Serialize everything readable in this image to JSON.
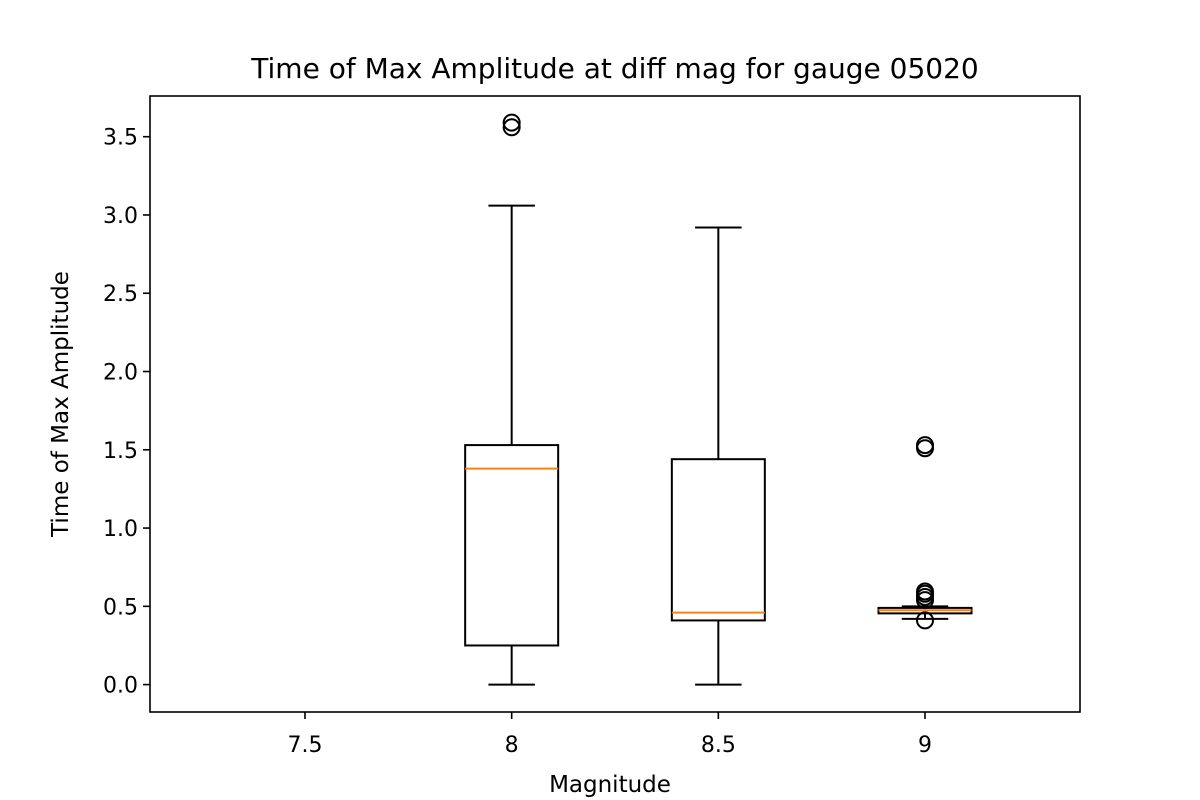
{
  "chart_data": {
    "type": "boxplot",
    "title": "Time of Max Amplitude at diff mag for gauge 05020",
    "xlabel": "Magnitude",
    "ylabel": "Time of Max Amplitude",
    "categories": [
      "7.5",
      "8",
      "8.5",
      "9"
    ],
    "ylim": [
      -0.175,
      3.76
    ],
    "yticks": [
      0.0,
      0.5,
      1.0,
      1.5,
      2.0,
      2.5,
      3.0,
      3.5
    ],
    "ytick_labels": [
      "0.0",
      "0.5",
      "1.0",
      "1.5",
      "2.0",
      "2.5",
      "3.0",
      "3.5"
    ],
    "grid": false,
    "legend": "none",
    "boxes": [
      {
        "category": "7.5",
        "empty": true
      },
      {
        "category": "8",
        "whisker_low": 0.0,
        "q1": 0.25,
        "median": 1.38,
        "q3": 1.53,
        "whisker_high": 3.06,
        "outliers": [
          3.56,
          3.59
        ]
      },
      {
        "category": "8.5",
        "whisker_low": 0.0,
        "q1": 0.41,
        "median": 0.46,
        "q3": 1.44,
        "whisker_high": 2.92,
        "outliers": []
      },
      {
        "category": "9",
        "whisker_low": 0.42,
        "q1": 0.455,
        "median": 0.475,
        "q3": 0.49,
        "whisker_high": 0.5,
        "outliers": [
          0.41,
          0.54,
          0.56,
          0.58,
          0.595,
          1.51,
          1.53
        ]
      }
    ],
    "colors": {
      "box": "#000000",
      "median": "#ff7f0e",
      "outlier": "#000000"
    }
  }
}
